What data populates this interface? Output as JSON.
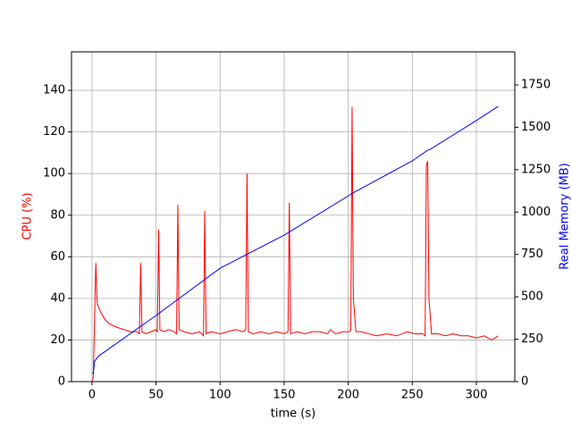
{
  "chart_data": {
    "type": "line",
    "xlabel": "time (s)",
    "ylabel": "CPU (%)",
    "y2label": "Real Memory (MB)",
    "xlim": [
      -16,
      330
    ],
    "ylim": [
      0,
      158.5
    ],
    "y2lim": [
      0,
      1945
    ],
    "xticks": [
      0,
      50,
      100,
      150,
      200,
      250,
      300
    ],
    "yticks": [
      0,
      20,
      40,
      60,
      80,
      100,
      120,
      140
    ],
    "y2ticks": [
      0,
      250,
      500,
      750,
      1000,
      1250,
      1500,
      1750
    ],
    "grid": true,
    "series": [
      {
        "name": "CPU",
        "color": "#ff0000",
        "axis": "y",
        "x": [
          0,
          1,
          2,
          3,
          4,
          5,
          7,
          10,
          13,
          16,
          20,
          25,
          30,
          35,
          37,
          38,
          39,
          42,
          46,
          50,
          51,
          52,
          53,
          56,
          60,
          64,
          66,
          67,
          68,
          72,
          78,
          84,
          87,
          88,
          89,
          93,
          100,
          106,
          112,
          118,
          120,
          121,
          122,
          126,
          132,
          138,
          144,
          150,
          153,
          154,
          155,
          160,
          166,
          172,
          178,
          184,
          186,
          190,
          196,
          201,
          202,
          203,
          204,
          206,
          210,
          216,
          222,
          230,
          238,
          246,
          252,
          258,
          260,
          261,
          262,
          263,
          265,
          270,
          276,
          282,
          288,
          294,
          300,
          306,
          312,
          317
        ],
        "values": [
          0,
          2,
          30,
          57,
          38,
          36,
          33,
          30,
          28,
          27,
          26,
          25,
          24,
          24,
          23,
          57,
          24,
          23,
          24,
          25,
          24,
          73,
          25,
          24,
          25,
          24,
          23,
          85,
          25,
          24,
          23,
          24,
          22,
          82,
          23,
          24,
          23,
          24,
          25,
          24,
          25,
          100,
          24,
          23,
          24,
          23,
          24,
          23,
          24,
          86,
          23,
          24,
          23,
          24,
          24,
          23,
          25,
          23,
          24,
          24,
          25,
          132,
          40,
          24,
          24,
          23,
          22,
          23,
          22,
          24,
          23,
          23,
          22,
          104,
          106,
          40,
          23,
          23,
          22,
          23,
          22,
          22,
          21,
          22,
          20,
          22
        ]
      },
      {
        "name": "Real Memory",
        "color": "#0000ff",
        "axis": "y2",
        "x": [
          0,
          1,
          2,
          5,
          50,
          100,
          150,
          200,
          203,
          250,
          262,
          264,
          300,
          317
        ],
        "values": [
          50,
          50,
          120,
          150,
          390,
          669,
          864,
          1095,
          1110,
          1302,
          1365,
          1370,
          1540,
          1623
        ]
      }
    ]
  }
}
